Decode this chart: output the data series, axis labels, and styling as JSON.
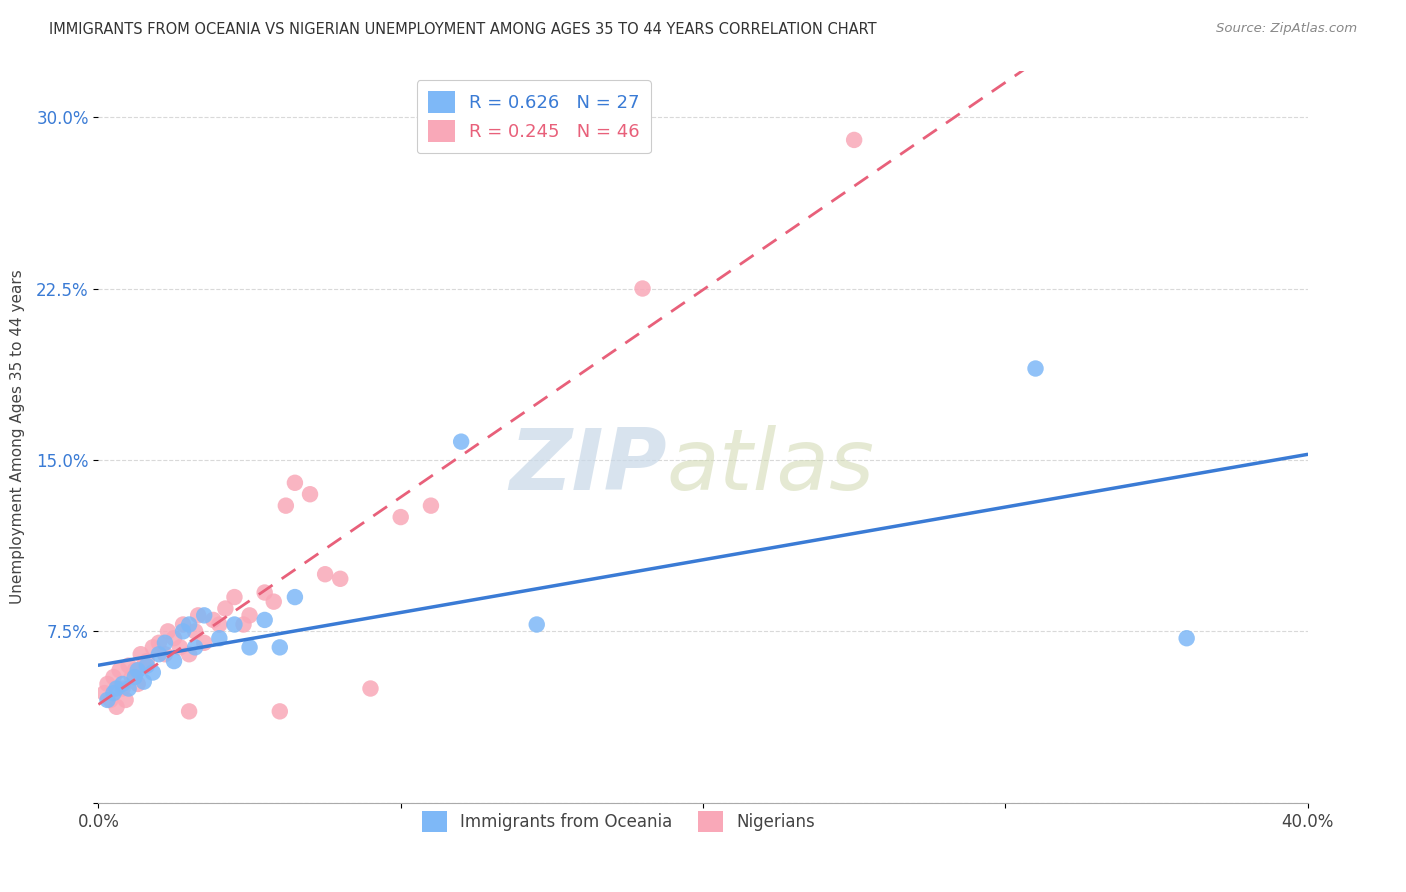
{
  "title": "IMMIGRANTS FROM OCEANIA VS NIGERIAN UNEMPLOYMENT AMONG AGES 35 TO 44 YEARS CORRELATION CHART",
  "source": "Source: ZipAtlas.com",
  "ylabel": "Unemployment Among Ages 35 to 44 years",
  "xlim": [
    0.0,
    0.4
  ],
  "ylim": [
    0.0,
    0.32
  ],
  "xticks": [
    0.0,
    0.1,
    0.2,
    0.3,
    0.4
  ],
  "xticklabels": [
    "0.0%",
    "",
    "",
    "",
    "40.0%"
  ],
  "yticks": [
    0.0,
    0.075,
    0.15,
    0.225,
    0.3
  ],
  "yticklabels": [
    "",
    "7.5%",
    "15.0%",
    "22.5%",
    "30.0%"
  ],
  "blue_R": 0.626,
  "blue_N": 27,
  "pink_R": 0.245,
  "pink_N": 46,
  "legend_label1": "Immigrants from Oceania",
  "legend_label2": "Nigerians",
  "blue_color": "#7eb8f7",
  "pink_color": "#f9a8b8",
  "blue_line_color": "#3a7bd5",
  "pink_line_color": "#e8607a",
  "blue_scatter_x": [
    0.003,
    0.005,
    0.006,
    0.008,
    0.01,
    0.012,
    0.013,
    0.015,
    0.016,
    0.018,
    0.02,
    0.022,
    0.025,
    0.028,
    0.03,
    0.032,
    0.035,
    0.04,
    0.045,
    0.05,
    0.055,
    0.06,
    0.065,
    0.12,
    0.145,
    0.31,
    0.36
  ],
  "blue_scatter_y": [
    0.045,
    0.048,
    0.05,
    0.052,
    0.05,
    0.055,
    0.058,
    0.053,
    0.06,
    0.057,
    0.065,
    0.07,
    0.062,
    0.075,
    0.078,
    0.068,
    0.082,
    0.072,
    0.078,
    0.068,
    0.08,
    0.068,
    0.09,
    0.158,
    0.078,
    0.19,
    0.072
  ],
  "pink_scatter_x": [
    0.002,
    0.003,
    0.004,
    0.005,
    0.006,
    0.007,
    0.008,
    0.009,
    0.01,
    0.011,
    0.012,
    0.013,
    0.014,
    0.015,
    0.016,
    0.018,
    0.02,
    0.022,
    0.023,
    0.025,
    0.027,
    0.028,
    0.03,
    0.032,
    0.033,
    0.035,
    0.038,
    0.04,
    0.042,
    0.045,
    0.048,
    0.05,
    0.055,
    0.058,
    0.062,
    0.065,
    0.07,
    0.075,
    0.08,
    0.09,
    0.1,
    0.11,
    0.18,
    0.25,
    0.03,
    0.06
  ],
  "pink_scatter_y": [
    0.048,
    0.052,
    0.045,
    0.055,
    0.042,
    0.058,
    0.05,
    0.045,
    0.06,
    0.055,
    0.058,
    0.052,
    0.065,
    0.06,
    0.062,
    0.068,
    0.07,
    0.065,
    0.075,
    0.072,
    0.068,
    0.078,
    0.065,
    0.075,
    0.082,
    0.07,
    0.08,
    0.078,
    0.085,
    0.09,
    0.078,
    0.082,
    0.092,
    0.088,
    0.13,
    0.14,
    0.135,
    0.1,
    0.098,
    0.05,
    0.125,
    0.13,
    0.225,
    0.29,
    0.04,
    0.04
  ],
  "watermark_zip": "ZIP",
  "watermark_atlas": "atlas",
  "background_color": "#ffffff",
  "grid_color": "#d0d0d0"
}
